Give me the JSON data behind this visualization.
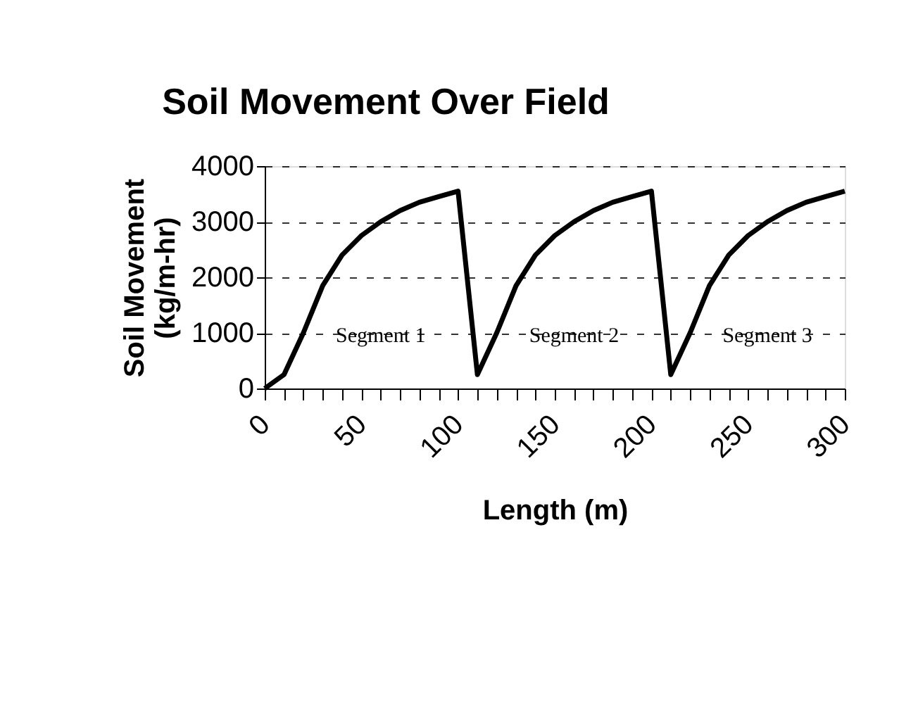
{
  "chart_data": {
    "type": "line",
    "title": "Soil Movement Over Field",
    "xlabel": "Length (m)",
    "ylabel": "Soil Movement\n(kg/m-hr)",
    "x": [
      0,
      10,
      20,
      30,
      40,
      50,
      60,
      70,
      80,
      90,
      100,
      110,
      120,
      130,
      140,
      150,
      160,
      170,
      180,
      190,
      200,
      210,
      220,
      230,
      240,
      250,
      260,
      270,
      280,
      290,
      300
    ],
    "series": [
      {
        "color": "#000000",
        "values": [
          0,
          250,
          1000,
          1850,
          2400,
          2750,
          3000,
          3200,
          3350,
          3450,
          3550,
          250,
          1000,
          1850,
          2400,
          2750,
          3000,
          3200,
          3350,
          3450,
          3550,
          250,
          1000,
          1850,
          2400,
          2750,
          3000,
          3200,
          3350,
          3450,
          3550
        ]
      }
    ],
    "xlim": [
      0,
      300
    ],
    "ylim": [
      0,
      4000
    ],
    "xticks": [
      0,
      {
        "value": 10,
        "label": null
      },
      {
        "value": 20,
        "label": null
      },
      {
        "value": 30,
        "label": null
      },
      {
        "value": 40,
        "label": null
      },
      50,
      {
        "value": 60,
        "label": null
      },
      {
        "value": 70,
        "label": null
      },
      {
        "value": 80,
        "label": null
      },
      {
        "value": 90,
        "label": null
      },
      100,
      {
        "value": 110,
        "label": null
      },
      {
        "value": 120,
        "label": null
      },
      {
        "value": 130,
        "label": null
      },
      {
        "value": 140,
        "label": null
      },
      150,
      {
        "value": 160,
        "label": null
      },
      {
        "value": 170,
        "label": null
      },
      {
        "value": 180,
        "label": null
      },
      {
        "value": 190,
        "label": null
      },
      200,
      {
        "value": 210,
        "label": null
      },
      {
        "value": 220,
        "label": null
      },
      {
        "value": 230,
        "label": null
      },
      {
        "value": 240,
        "label": null
      },
      250,
      {
        "value": 260,
        "label": null
      },
      {
        "value": 270,
        "label": null
      },
      {
        "value": 280,
        "label": null
      },
      {
        "value": 290,
        "label": null
      },
      300
    ],
    "yticks": [
      0,
      1000,
      2000,
      3000,
      4000
    ],
    "grid": "y",
    "marker": "none",
    "line_style": "solid",
    "annotations": [
      "Segment 1",
      "Segment 2",
      "Segment 3"
    ]
  }
}
